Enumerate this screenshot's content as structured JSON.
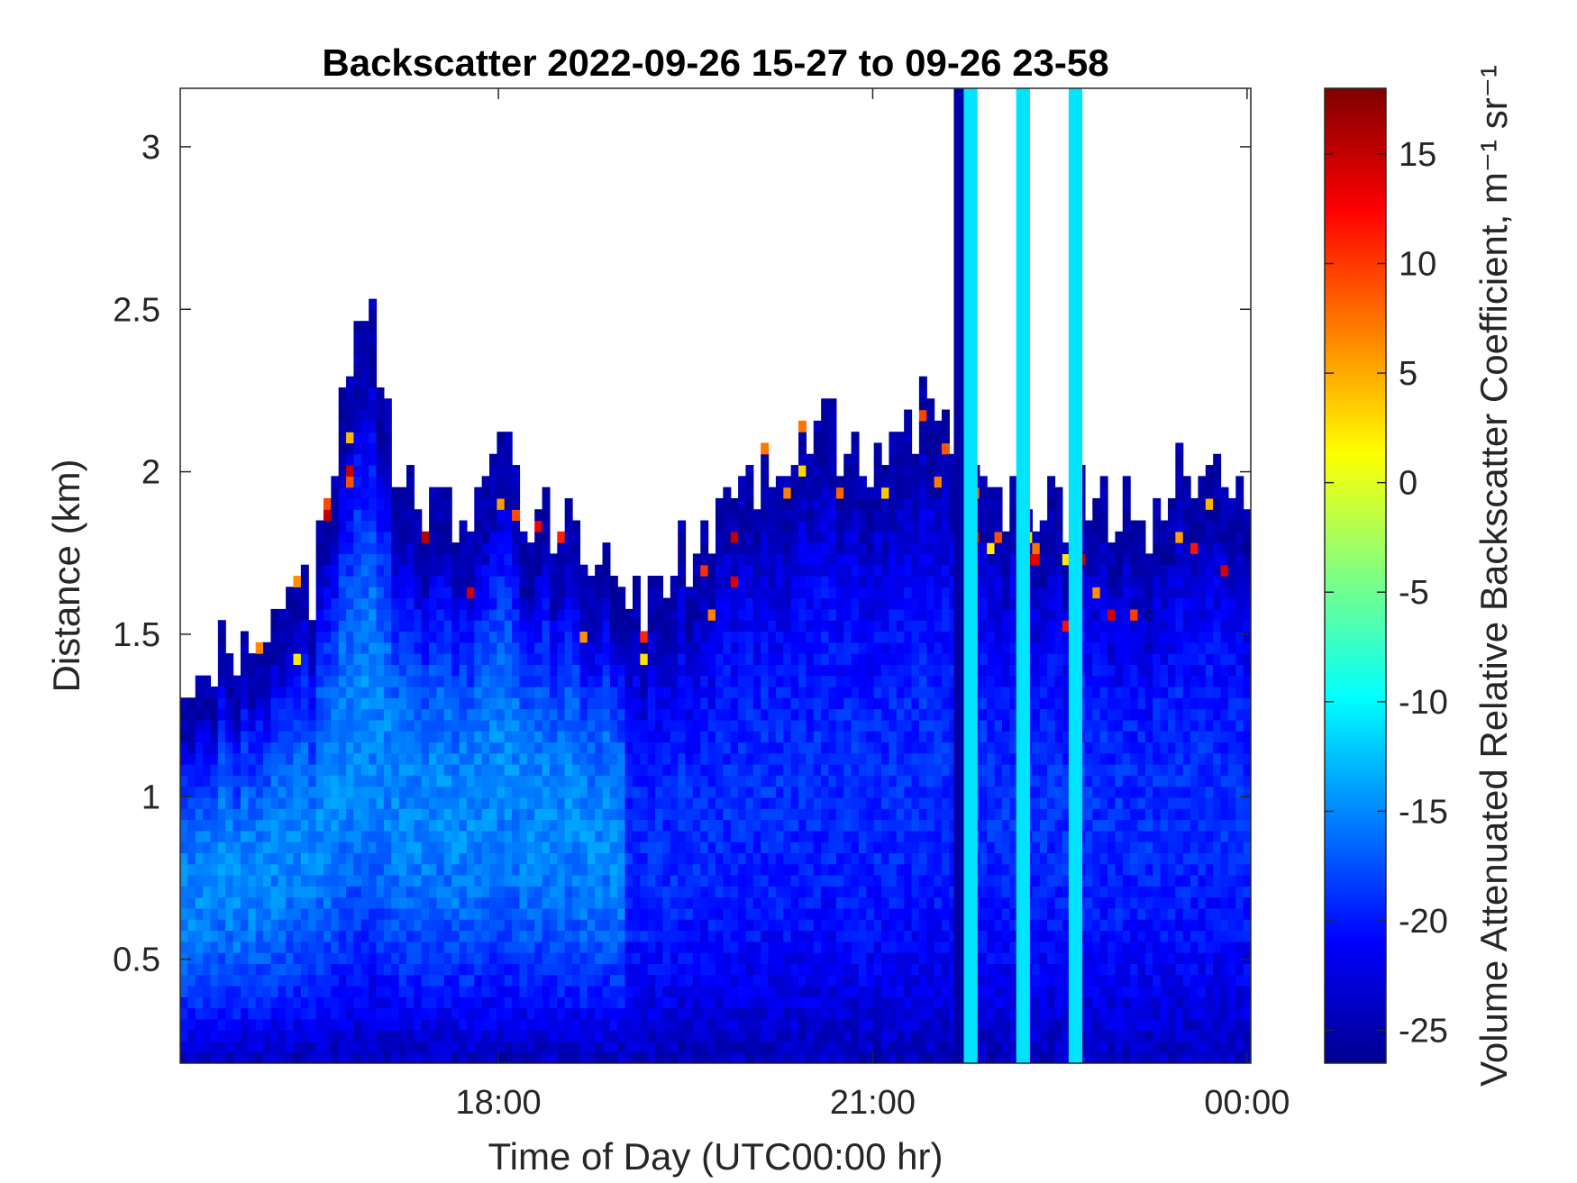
{
  "chart_data": {
    "type": "heatmap",
    "title": "Backscatter 2022-09-26 15-27 to 09-26 23-58",
    "xlabel": "Time of Day (UTC00:00 hr)",
    "ylabel": "Distance (km)",
    "colorbar_label": "Volume Attenuated Relative Backscatter Coefficient, m⁻¹ sr⁻¹",
    "colormap": "jet",
    "x_ticks": [
      "18:00",
      "21:00",
      "00:00"
    ],
    "x_tick_hours": [
      18,
      21,
      24
    ],
    "xlim_hours": [
      15.45,
      24.03
    ],
    "y_ticks": [
      0.5,
      1,
      1.5,
      2,
      2.5,
      3
    ],
    "y_tick_labels": [
      "0.5",
      "1",
      "1.5",
      "2",
      "2.5",
      "3"
    ],
    "ylim": [
      0.18,
      3.18
    ],
    "colorbar_ticks": [
      15,
      10,
      5,
      0,
      -5,
      -10,
      -15,
      -20,
      -25
    ],
    "colorbar_tick_labels": [
      "15",
      "10",
      "5",
      "0",
      "-5",
      "-10",
      "-15",
      "-20",
      "-25"
    ],
    "clim": [
      -26.5,
      18
    ],
    "cloud_top_km": [
      [
        15.45,
        1.25
      ],
      [
        15.7,
        1.38
      ],
      [
        15.9,
        1.45
      ],
      [
        16.1,
        1.5
      ],
      [
        16.3,
        1.55
      ],
      [
        16.5,
        1.65
      ],
      [
        16.8,
        2.35
      ],
      [
        17.0,
        2.45
      ],
      [
        17.2,
        1.95
      ],
      [
        17.4,
        1.85
      ],
      [
        17.6,
        1.9
      ],
      [
        17.8,
        1.85
      ],
      [
        18.0,
        2.1
      ],
      [
        18.2,
        1.85
      ],
      [
        18.4,
        1.85
      ],
      [
        18.6,
        1.8
      ],
      [
        18.8,
        1.75
      ],
      [
        19.0,
        1.65
      ],
      [
        19.2,
        1.55
      ],
      [
        19.4,
        1.75
      ],
      [
        19.6,
        1.8
      ],
      [
        19.8,
        1.85
      ],
      [
        20.0,
        1.9
      ],
      [
        20.2,
        2.0
      ],
      [
        20.4,
        2.05
      ],
      [
        20.6,
        2.15
      ],
      [
        20.8,
        2.0
      ],
      [
        21.0,
        2.05
      ],
      [
        21.2,
        2.15
      ],
      [
        21.4,
        2.2
      ],
      [
        21.6,
        2.1
      ],
      [
        21.8,
        2.05
      ],
      [
        22.0,
        1.9
      ],
      [
        22.3,
        1.9
      ],
      [
        22.6,
        1.9
      ],
      [
        22.9,
        1.9
      ],
      [
        23.2,
        1.85
      ],
      [
        23.5,
        2.0
      ],
      [
        23.8,
        1.95
      ],
      [
        24.03,
        2.0
      ]
    ],
    "column_bands": [
      {
        "start_hour": 21.65,
        "end_hour": 21.73,
        "level_db": -25
      },
      {
        "start_hour": 21.73,
        "end_hour": 21.84,
        "level_db": -11
      },
      {
        "start_hour": 22.15,
        "end_hour": 22.26,
        "level_db": -11
      },
      {
        "start_hour": 22.57,
        "end_hour": 22.68,
        "level_db": -11
      }
    ]
  }
}
